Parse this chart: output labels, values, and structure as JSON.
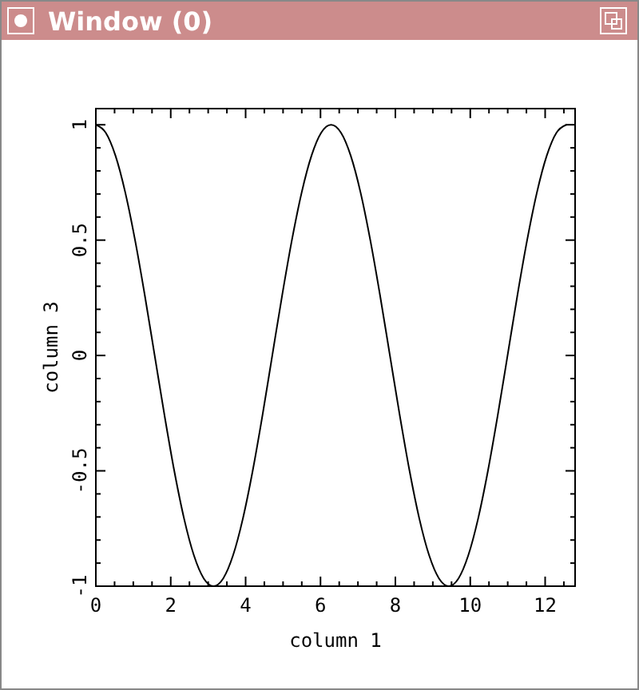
{
  "chart_data": {
    "type": "line",
    "title": "Window (0)",
    "xlabel": "column 1",
    "ylabel": "column 3",
    "x": [
      0,
      0.262,
      0.524,
      0.785,
      1.047,
      1.309,
      1.571,
      1.833,
      2.094,
      2.356,
      2.618,
      2.88,
      3.142,
      3.403,
      3.665,
      3.927,
      4.189,
      4.451,
      4.712,
      4.974,
      5.236,
      5.498,
      5.76,
      6.021,
      6.283,
      6.545,
      6.807,
      7.069,
      7.33,
      7.592,
      7.854,
      8.116,
      8.378,
      8.639,
      8.901,
      9.163,
      9.425,
      9.687,
      9.948,
      10.21,
      10.472,
      10.734,
      10.996,
      11.257,
      11.519,
      11.781,
      12.043,
      12.305,
      12.566
    ],
    "series": [
      {
        "color": "#000000",
        "values": [
          1,
          0.966,
          0.866,
          0.707,
          0.5,
          0.259,
          0,
          -0.259,
          -0.5,
          -0.707,
          -0.866,
          -0.966,
          -1,
          -0.966,
          -0.866,
          -0.707,
          -0.5,
          -0.259,
          0,
          0.259,
          0.5,
          0.707,
          0.866,
          0.966,
          1,
          0.966,
          0.866,
          0.707,
          0.5,
          0.259,
          0,
          -0.259,
          -0.5,
          -0.707,
          -0.866,
          -0.966,
          -1,
          -0.966,
          -0.866,
          -0.707,
          -0.5,
          -0.259,
          0,
          0.259,
          0.5,
          0.707,
          0.866,
          0.966,
          1
        ]
      }
    ],
    "xlim": [
      0,
      12.8
    ],
    "ylim": [
      -1,
      1.07
    ],
    "xticks": [
      0,
      {
        "value": 0.5,
        "label": null
      },
      {
        "value": 1,
        "label": null
      },
      {
        "value": 1.5,
        "label": null
      },
      2,
      {
        "value": 2.5,
        "label": null
      },
      {
        "value": 3,
        "label": null
      },
      {
        "value": 3.5,
        "label": null
      },
      4,
      {
        "value": 4.5,
        "label": null
      },
      {
        "value": 5,
        "label": null
      },
      {
        "value": 5.5,
        "label": null
      },
      6,
      {
        "value": 6.5,
        "label": null
      },
      {
        "value": 7,
        "label": null
      },
      {
        "value": 7.5,
        "label": null
      },
      8,
      {
        "value": 8.5,
        "label": null
      },
      {
        "value": 9,
        "label": null
      },
      {
        "value": 9.5,
        "label": null
      },
      10,
      {
        "value": 10.5,
        "label": null
      },
      {
        "value": 11,
        "label": null
      },
      {
        "value": 11.5,
        "label": null
      },
      12,
      {
        "value": 12.5,
        "label": null
      }
    ],
    "yticks": [
      -1,
      {
        "value": -0.9,
        "label": null
      },
      {
        "value": -0.8,
        "label": null
      },
      {
        "value": -0.7,
        "label": null
      },
      {
        "value": -0.6,
        "label": null
      },
      -0.5,
      {
        "value": -0.4,
        "label": null
      },
      {
        "value": -0.3,
        "label": null
      },
      {
        "value": -0.2,
        "label": null
      },
      {
        "value": -0.1,
        "label": null
      },
      0,
      {
        "value": 0.1,
        "label": null
      },
      {
        "value": 0.2,
        "label": null
      },
      {
        "value": 0.3,
        "label": null
      },
      {
        "value": 0.4,
        "label": null
      },
      0.5,
      {
        "value": 0.6,
        "label": null
      },
      {
        "value": 0.7,
        "label": null
      },
      {
        "value": 0.8,
        "label": null
      },
      {
        "value": 0.9,
        "label": null
      },
      1
    ],
    "marker": "none",
    "line_style": "solid"
  }
}
